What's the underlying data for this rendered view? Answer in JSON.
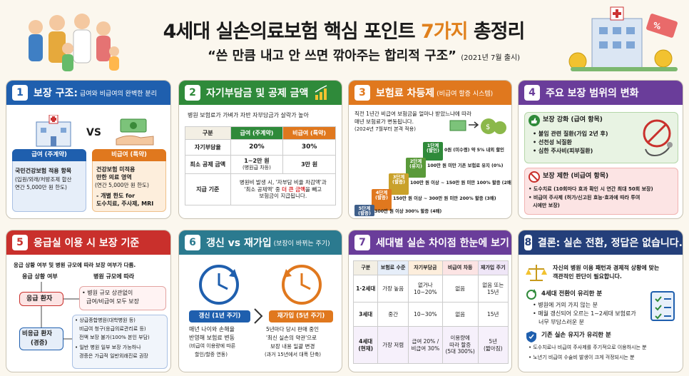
{
  "header": {
    "title_a": "4세대 실손의료보험 핵심 포인트 ",
    "title_b": "7가지",
    "title_c": " 총정리",
    "subtitle": "“쓴 만큼 내고 안 쓰면 깎아주는 합리적 구조”",
    "release": "(2021년 7월 출시)"
  },
  "s1": {
    "num": "1",
    "title": "보장 구조:",
    "sub": "급여와 비급여의 완벽한 분리",
    "vs": "VS",
    "a_label": "급여 (주계약)",
    "a_l1": "국민건강보험 적용 항목",
    "a_l2": "(입원/외래/처방조제 합산",
    "a_l3": "연간 5,000만 원 한도)",
    "b_label": "비급여 (특약)",
    "b_l1": "건강보험 미적용",
    "b_l2": "만한 의료 영역",
    "b_l3": "(연간 5,000만 원 한도)",
    "b_l4": "- 개별 한도 for",
    "b_l5": "도수치료, 주사제, MRI"
  },
  "s2": {
    "num": "2",
    "title": "자기부담금 및 공제 금액",
    "intro": "병원 보험료가 가벼가 자반 자부담금가 살락가 높아",
    "h0": "구분",
    "h1": "급여 (주계약)",
    "h2": "비급여 (특약)",
    "r1": [
      "자기부담율",
      "20%",
      "30%"
    ],
    "r2a": "최소 공제 금액",
    "r2b1": "1~2만 원",
    "r2b2": "(병원급 차등)",
    "r2c": "3만 원",
    "r3a": "지급 기준",
    "r3l1": "병원비 발생 시, '자부담 비율 차감액'과",
    "r3l2": "'최소 공제액' 중 ",
    "r3hl": "더 큰 금액",
    "r3l3": "을 빼고",
    "r3l4": "보험금이 지급됩니다."
  },
  "s3": {
    "num": "3",
    "title": "보험료 차등제",
    "sub": "(비급여 할증 시스템)",
    "d1": "직전 1년간 비급여 보험금을 얼마나 받았느냐에 따라",
    "d2": "매년 보험료가 변동됩니다.",
    "d3": "(2024년 7월부터 본격 적용)",
    "steps": [
      "1단계\n(할인)",
      "2단계\n(유지)",
      "3단계\n(할증)",
      "4단계\n(할증)",
      "5단계\n(할증)"
    ],
    "l1": "0원 (미수령) 약 5% 내외 할인",
    "l2": "100만 원 미만 기존 보험료 유지 (0%)",
    "l3": "100만 원 이상 ~ 150만 원 미만 100% 할증 (2배)",
    "l4": "150만 원 이상 ~ 300만 원 미만 200% 할증 (3배)",
    "l5": "300만 원 이상 300% 할증 (4배)"
  },
  "s4": {
    "num": "4",
    "title": "주요 보장 범위의 변화",
    "g_title": "보장 강화 (급여 항목)",
    "g1": "• 불임 관련 질환(가입 2년 후)",
    "g2": "• 선천성 뇌질환",
    "g3": "• 심한 주사비(피부질환)",
    "r_title": "보장 제한 (비급여 항목)",
    "r1": "• 도수치료 (10회마다 효과 확인 시 연간 최대 50회 보장)",
    "r2": "• 비급여 주사제 (허가/신고된 효능·효과에 따라 투여",
    "r3": "시에만 보장)"
  },
  "s5": {
    "num": "5",
    "title": "응급실 이용 시 보장 기준",
    "intro": "응급 상황 여부 및 병원 규모에 따라 보장 여부가 다름.",
    "c1": "응급 상황 여부",
    "c2": "병원 규모에 따라",
    "p1": "응급 환자",
    "p1a": "• 병원 규모 상관없이",
    "p1b": "급여/비급여 모두 보장",
    "p2a": "비응급 환자",
    "p2b": "(경증)",
    "p2l1": "• 상급종합병원(대학병원 등)",
    "p2l2": "비급여 청구(응급의료관리료 등)",
    "p2l3": "전액 보장 불가(100% 본인 부담)",
    "p2l4": "• 일반 병원 일부 보장 가능하나",
    "p2l5": "경증은 가급적 일반외래진료 권장"
  },
  "s6": {
    "num": "6",
    "title": "갱신 vs 재가입",
    "sub": "(보장이 바뀌는 주기)",
    "a_label": "갱신 (1년 주기)",
    "a1": "매년 나이와 손해율",
    "a2": "반영해 보험료 변동",
    "a3": "(비급여 이용량에 따른",
    "a4": "할인/할증 연동)",
    "b_label": "재가입 (5년 주기)",
    "b1": "5년마다 당시 판매 중인",
    "b2": "'최신 실손의 약관'으로",
    "b3": "보장 내용 일괄 변경",
    "b4": "(과거 15년에서 대폭 단축)"
  },
  "s7": {
    "num": "7",
    "title": "세대별 실손 차이점 한눈에 보기",
    "h": [
      "구분",
      "보험료 수준",
      "자기부담금",
      "비급여 차등",
      "재가입 주기"
    ],
    "r1": [
      "1·2세대",
      "가장 높음",
      "없거나\n10~20%",
      "없음",
      "없음 또는\n15년"
    ],
    "r2": [
      "3세대",
      "중간",
      "10~30%",
      "없음",
      "15년"
    ],
    "r3": [
      "4세대\n(현재)",
      "가장 저렴",
      "급여 20% /\n비급여 30%",
      "이용량에\n따라 할증\n(5대 300%)",
      "5년\n(짧아짐)"
    ]
  },
  "s8": {
    "num": "8",
    "title": "결론: 실손 전환, 정답은 없습니다.",
    "intro1": "자신의 병원 이용 패턴과 경제적 상황에 맞는",
    "intro2": "객관적인 판단이 필요합니다.",
    "a_title": "4세대 전환이 유리한 분",
    "a1": "• 병원에 거의 가지 않는 분",
    "a2": "• 매월 갱신되어 오르는 1~2세대 보험료가",
    "a3": "너무 부담스러운 분",
    "b_title": "기존 실손 유지가 유리한 분",
    "b1": "• 도수치료나 비급여 주사제를 주기적으로 이용하시는 분",
    "b2": "• 노년기 비급여 수술비 발생이 크게 걱정되시는 분"
  }
}
